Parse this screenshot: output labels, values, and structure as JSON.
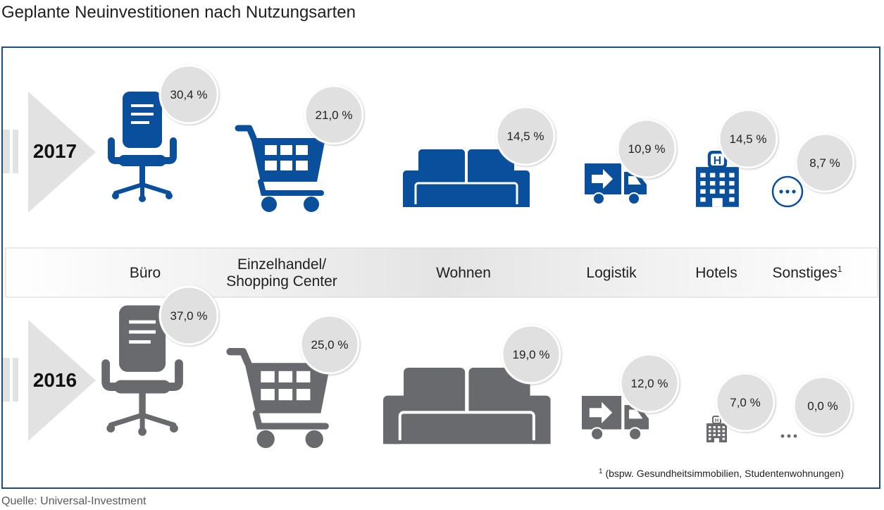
{
  "title": "Geplante Neuinvestitionen nach Nutzungsarten",
  "source": "Quelle: Universal-Investment",
  "colors": {
    "y2017": "#0a4f9c",
    "y2016": "#686a6e",
    "frame": "#1f4e79",
    "bubble": "#e0e0e0"
  },
  "chart_data": {
    "type": "pictogram",
    "unit": "%",
    "categories": [
      {
        "label_lines": [
          "Büro"
        ],
        "icon": "office-chair-icon"
      },
      {
        "label_lines": [
          "Einzelhandel/",
          "Shopping Center"
        ],
        "icon": "shopping-cart-icon"
      },
      {
        "label_lines": [
          "Wohnen"
        ],
        "icon": "sofa-icon"
      },
      {
        "label_lines": [
          "Logistik"
        ],
        "icon": "truck-icon"
      },
      {
        "label_lines": [
          "Hotels"
        ],
        "icon": "hotel-icon"
      },
      {
        "label_lines": [
          "Sonstiges"
        ],
        "label_sup": "1",
        "icon": "ellipsis-icon"
      }
    ],
    "series": [
      {
        "name": "2017",
        "values": [
          30.4,
          21.0,
          14.5,
          10.9,
          14.5,
          8.7
        ],
        "labels": [
          "30,4 %",
          "21,0 %",
          "14,5 %",
          "10,9 %",
          "14,5 %",
          "8,7 %"
        ]
      },
      {
        "name": "2016",
        "values": [
          37.0,
          25.0,
          19.0,
          12.0,
          7.0,
          0.0
        ],
        "labels": [
          "37,0 %",
          "25,0 %",
          "19,0 %",
          "12,0 %",
          "7,0 %",
          "0,0 %"
        ]
      }
    ],
    "footnote": {
      "marker": "1",
      "text": " (bspw. Gesundheitsimmobilien, Studentenwohnungen)"
    }
  }
}
